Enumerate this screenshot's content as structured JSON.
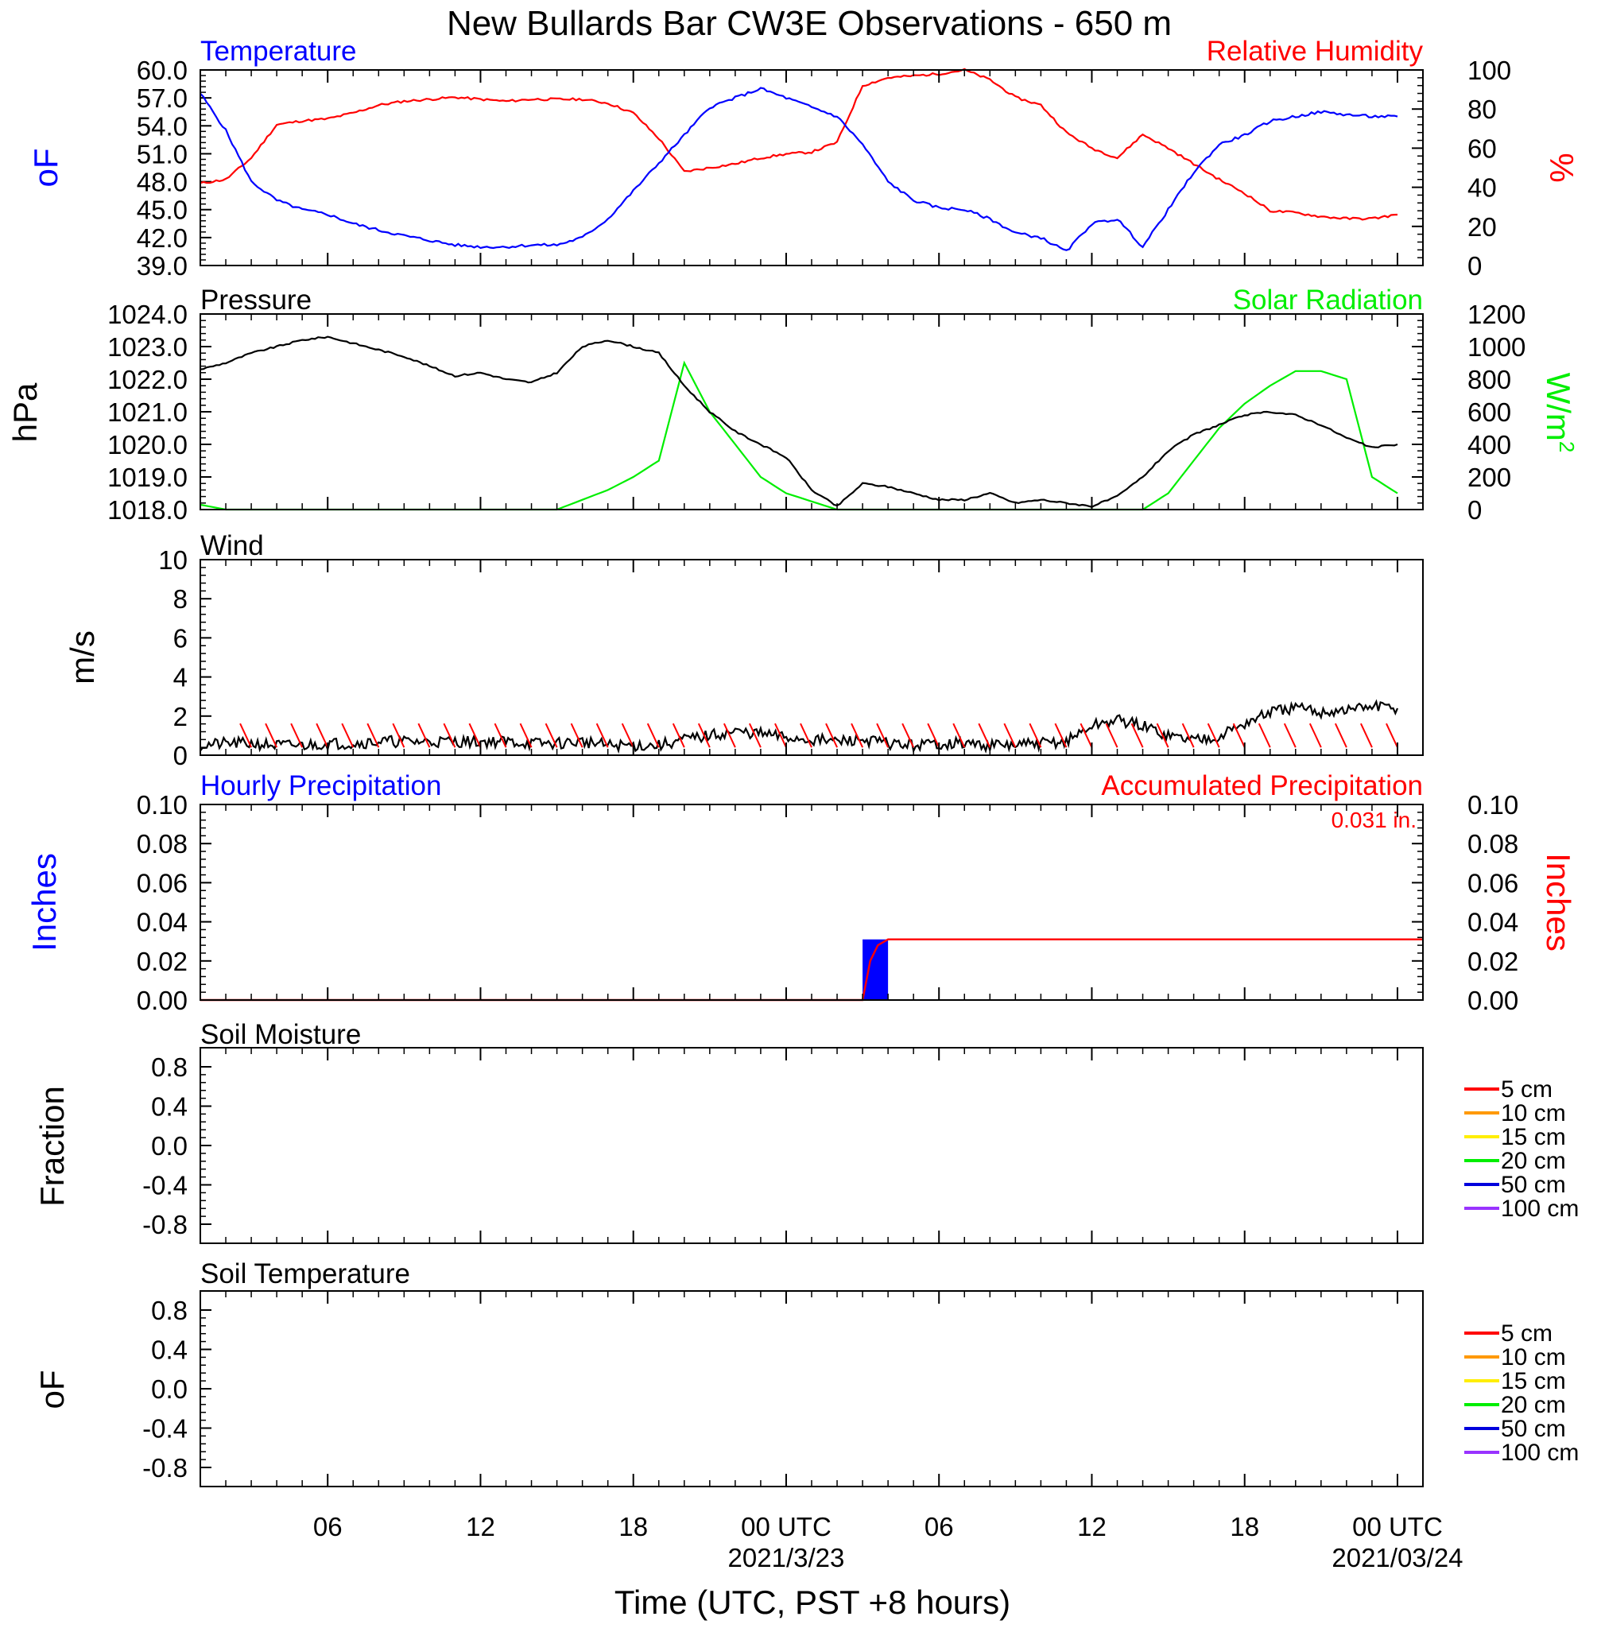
{
  "title": "New Bullards Bar CW3E Observations - 650 m",
  "xaxis": {
    "label": "Time (UTC, PST +8 hours)",
    "ticks": [
      {
        "label": "06",
        "hour": 6
      },
      {
        "label": "12",
        "hour": 12
      },
      {
        "label": "18",
        "hour": 18
      },
      {
        "label": "00 UTC",
        "hour": 24,
        "sub": "2021/3/23"
      },
      {
        "label": "06",
        "hour": 30
      },
      {
        "label": "12",
        "hour": 36
      },
      {
        "label": "18",
        "hour": 42
      },
      {
        "label": "00 UTC",
        "hour": 48,
        "sub": "2021/03/24"
      }
    ],
    "range_hours": [
      1,
      49
    ]
  },
  "colors": {
    "temperature": "#0000ff",
    "humidity": "#ff0000",
    "pressure": "#000000",
    "solar": "#00ee00",
    "wind": "#000000",
    "barbs": "#ff0000",
    "hourly_precip": "#0000ff",
    "accum_precip": "#ff0000"
  },
  "panels": {
    "temp_rh": {
      "left_title": "Temperature",
      "right_title": "Relative Humidity",
      "left_unit": "oF",
      "right_unit": "%",
      "left_ticks": [
        "60.0",
        "57.0",
        "54.0",
        "51.0",
        "48.0",
        "45.0",
        "42.0",
        "39.0"
      ],
      "right_ticks": [
        "100",
        "80",
        "60",
        "40",
        "20",
        "0"
      ]
    },
    "pressure_solar": {
      "left_title": "Pressure",
      "right_title": "Solar Radiation",
      "left_unit": "hPa",
      "right_unit": "W/m",
      "right_unit_sup": "2",
      "left_ticks": [
        "1024.0",
        "1023.0",
        "1022.0",
        "1021.0",
        "1020.0",
        "1019.0",
        "1018.0"
      ],
      "right_ticks": [
        "1200",
        "1000",
        "800",
        "600",
        "400",
        "200",
        "0"
      ]
    },
    "wind": {
      "left_title": "Wind",
      "left_unit": "m/s",
      "left_ticks": [
        "10",
        "8",
        "6",
        "4",
        "2",
        "0"
      ]
    },
    "precip": {
      "left_title": "Hourly Precipitation",
      "right_title": "Accumulated Precipitation",
      "total_label": "0.031 in.",
      "left_unit": "Inches",
      "right_unit": "Inches",
      "left_ticks": [
        "0.10",
        "0.08",
        "0.06",
        "0.04",
        "0.02",
        "0.00"
      ],
      "right_ticks": [
        "0.10",
        "0.08",
        "0.06",
        "0.04",
        "0.02",
        "0.00"
      ]
    },
    "soil_moisture": {
      "left_title": "Soil Moisture",
      "left_unit": "Fraction",
      "left_ticks": [
        "0.8",
        "0.4",
        "0.0",
        "-0.4",
        "-0.8"
      ],
      "legend": [
        "5 cm",
        "10 cm",
        "15 cm",
        "20 cm",
        "50 cm",
        "100 cm"
      ]
    },
    "soil_temp": {
      "left_title": "Soil Temperature",
      "left_unit": "oF",
      "left_ticks": [
        "0.8",
        "0.4",
        "0.0",
        "-0.4",
        "-0.8"
      ],
      "legend": [
        "5 cm",
        "10 cm",
        "15 cm",
        "20 cm",
        "50 cm",
        "100 cm"
      ]
    }
  },
  "legend_colors": [
    "#ff0000",
    "#ff9900",
    "#ffee00",
    "#00ee00",
    "#0000dd",
    "#9933ff"
  ],
  "chart_data": [
    {
      "type": "line",
      "title": "Temperature",
      "ylabel": "oF",
      "ylim": [
        39,
        60
      ],
      "x": [
        1,
        2,
        3,
        4,
        5,
        6,
        7,
        8,
        9,
        10,
        11,
        12,
        13,
        14,
        15,
        16,
        17,
        18,
        19,
        20,
        21,
        22,
        23,
        24,
        25,
        26,
        27,
        28,
        29,
        30,
        31,
        32,
        33,
        34,
        35,
        36,
        37,
        38,
        39,
        40,
        41,
        42,
        43,
        44,
        45,
        46,
        47,
        48
      ],
      "series": [
        {
          "name": "Temperature",
          "values": [
            57.5,
            53.5,
            48,
            46,
            45,
            44.5,
            43.5,
            42.8,
            42.2,
            41.7,
            41.2,
            41.0,
            41.0,
            41.2,
            41.2,
            42,
            44,
            47,
            50,
            53,
            56,
            57,
            58,
            57,
            56,
            55,
            52,
            48,
            46,
            45.2,
            45,
            44,
            42.5,
            42,
            40.5,
            43.5,
            44,
            41,
            45,
            49,
            52,
            53,
            54.5,
            55,
            55.5,
            55.2,
            55,
            55
          ]
        }
      ]
    },
    {
      "type": "line",
      "title": "Relative Humidity",
      "ylabel": "%",
      "ylim": [
        0,
        100
      ],
      "x": [
        1,
        2,
        3,
        4,
        5,
        6,
        7,
        8,
        9,
        10,
        11,
        12,
        13,
        14,
        15,
        16,
        17,
        18,
        19,
        20,
        21,
        22,
        23,
        24,
        25,
        26,
        27,
        28,
        29,
        30,
        31,
        32,
        33,
        34,
        35,
        36,
        37,
        38,
        39,
        40,
        41,
        42,
        43,
        44,
        45,
        46,
        47,
        48
      ],
      "series": [
        {
          "name": "Relative Humidity",
          "values": [
            42,
            44,
            55,
            72,
            74,
            75,
            78,
            82,
            84,
            85,
            86,
            85,
            84,
            85,
            85,
            85,
            83,
            78,
            65,
            48,
            50,
            52,
            55,
            57,
            58,
            63,
            92,
            96,
            97,
            98,
            100,
            95,
            86,
            82,
            68,
            60,
            55,
            67,
            60,
            52,
            44,
            37,
            28,
            27,
            25,
            24,
            24,
            26
          ]
        }
      ]
    },
    {
      "type": "line",
      "title": "Pressure",
      "ylabel": "hPa",
      "ylim": [
        1018,
        1024
      ],
      "x": [
        1,
        2,
        3,
        4,
        5,
        6,
        7,
        8,
        9,
        10,
        11,
        12,
        13,
        14,
        15,
        16,
        17,
        18,
        19,
        20,
        21,
        22,
        23,
        24,
        25,
        26,
        27,
        28,
        29,
        30,
        31,
        32,
        33,
        34,
        35,
        36,
        37,
        38,
        39,
        40,
        41,
        42,
        43,
        44,
        45,
        46,
        47,
        48
      ],
      "series": [
        {
          "name": "Pressure",
          "values": [
            1022.3,
            1022.5,
            1022.8,
            1023.0,
            1023.2,
            1023.3,
            1023.1,
            1022.9,
            1022.7,
            1022.4,
            1022.1,
            1022.2,
            1022.0,
            1021.9,
            1022.2,
            1023.0,
            1023.2,
            1023.0,
            1022.8,
            1021.8,
            1021.0,
            1020.4,
            1020.0,
            1019.6,
            1018.6,
            1018.1,
            1018.8,
            1018.7,
            1018.5,
            1018.3,
            1018.3,
            1018.5,
            1018.2,
            1018.3,
            1018.2,
            1018.1,
            1018.4,
            1019.0,
            1019.8,
            1020.3,
            1020.6,
            1020.9,
            1021.0,
            1020.9,
            1020.6,
            1020.2,
            1019.9,
            1020.0
          ]
        }
      ]
    },
    {
      "type": "line",
      "title": "Solar Radiation",
      "ylabel": "W/m2",
      "ylim": [
        0,
        1200
      ],
      "x": [
        1,
        2,
        3,
        4,
        5,
        6,
        7,
        8,
        9,
        10,
        11,
        12,
        13,
        14,
        15,
        16,
        17,
        18,
        19,
        20,
        21,
        22,
        23,
        24,
        25,
        26,
        27,
        28,
        29,
        30,
        31,
        32,
        33,
        34,
        35,
        36,
        37,
        38,
        39,
        40,
        41,
        42,
        43,
        44,
        45,
        46,
        47,
        48
      ],
      "series": [
        {
          "name": "Solar Radiation",
          "values": [
            30,
            0,
            0,
            0,
            0,
            0,
            0,
            0,
            0,
            0,
            0,
            0,
            0,
            0,
            0,
            60,
            120,
            200,
            300,
            900,
            600,
            400,
            200,
            100,
            50,
            0,
            0,
            0,
            0,
            0,
            0,
            0,
            0,
            0,
            0,
            0,
            0,
            0,
            100,
            300,
            500,
            650,
            760,
            850,
            850,
            800,
            200,
            100
          ]
        }
      ]
    },
    {
      "type": "line",
      "title": "Wind",
      "ylabel": "m/s",
      "ylim": [
        0,
        10
      ],
      "x": [
        1,
        2,
        3,
        4,
        5,
        6,
        7,
        8,
        9,
        10,
        11,
        12,
        13,
        14,
        15,
        16,
        17,
        18,
        19,
        20,
        21,
        22,
        23,
        24,
        25,
        26,
        27,
        28,
        29,
        30,
        31,
        32,
        33,
        34,
        35,
        36,
        37,
        38,
        39,
        40,
        41,
        42,
        43,
        44,
        45,
        46,
        47,
        48
      ],
      "series": [
        {
          "name": "Wind",
          "values": [
            0.5,
            0.6,
            0.6,
            0.5,
            0.5,
            0.6,
            0.6,
            0.7,
            0.7,
            0.7,
            0.7,
            0.7,
            0.7,
            0.6,
            0.6,
            0.7,
            0.5,
            0.5,
            0.5,
            0.8,
            1.0,
            1.2,
            1.1,
            0.9,
            0.8,
            0.7,
            0.8,
            0.6,
            0.5,
            0.6,
            0.6,
            0.5,
            0.5,
            0.6,
            0.7,
            1.5,
            1.8,
            1.5,
            1.0,
            0.8,
            1.0,
            1.6,
            2.2,
            2.4,
            2.2,
            2.3,
            2.5,
            2.4
          ]
        }
      ]
    },
    {
      "type": "bar",
      "title": "Hourly Precipitation",
      "ylabel": "Inches",
      "ylim": [
        0,
        0.1
      ],
      "x_start": [
        27
      ],
      "x_end": [
        28
      ],
      "values": [
        0.031
      ]
    },
    {
      "type": "line",
      "title": "Accumulated Precipitation",
      "ylabel": "Inches",
      "ylim": [
        0,
        0.1
      ],
      "x": [
        1,
        26,
        27,
        27.3,
        27.6,
        28,
        49
      ],
      "series": [
        {
          "name": "Accumulated Precipitation",
          "values": [
            0,
            0,
            0,
            0.02,
            0.028,
            0.031,
            0.031
          ]
        }
      ]
    }
  ]
}
